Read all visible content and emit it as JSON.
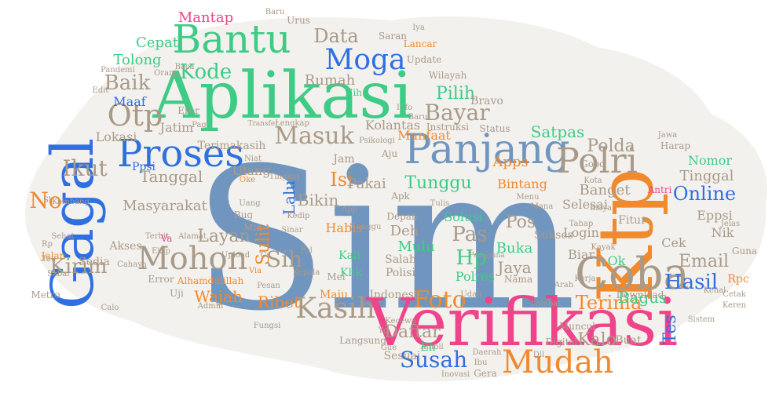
{
  "colors": {
    "steel": "#7096bf",
    "green": "#3ecb86",
    "blue": "#2f6fe0",
    "pink": "#f0448a",
    "orange": "#f08a2e",
    "taupe": "#a99a88",
    "filler": "#c9c3ba"
  },
  "words": [
    {
      "text": "Sim",
      "color": "steel"
    },
    {
      "text": "Aplikasi",
      "color": "green"
    },
    {
      "text": "Verifikasi",
      "color": "pink"
    },
    {
      "text": "Ktp",
      "color": "orange"
    },
    {
      "text": "Panjang",
      "color": "steel"
    },
    {
      "text": "Gagal",
      "color": "blue"
    },
    {
      "text": "Coba",
      "color": "taupe"
    },
    {
      "text": "Proses",
      "color": "blue"
    },
    {
      "text": "Bantu",
      "color": "green"
    },
    {
      "text": "Mudah",
      "color": "orange"
    },
    {
      "text": "Polri",
      "color": "taupe"
    },
    {
      "text": "Moga",
      "color": "blue"
    },
    {
      "text": "Otp",
      "color": "taupe"
    },
    {
      "text": "Mohon",
      "color": "taupe"
    },
    {
      "text": "Kasih",
      "color": "taupe"
    },
    {
      "text": "Susah",
      "color": "blue"
    },
    {
      "text": "Masuk",
      "color": "taupe"
    },
    {
      "text": "Baik",
      "color": "taupe"
    },
    {
      "text": "Hasil",
      "color": "blue"
    },
    {
      "text": "Foto",
      "color": "orange"
    },
    {
      "text": "Ikut",
      "color": "taupe"
    },
    {
      "text": "Bayar",
      "color": "taupe"
    },
    {
      "text": "Kirim",
      "color": "taupe"
    },
    {
      "text": "Sih",
      "color": "taupe"
    },
    {
      "text": "Pas",
      "color": "taupe"
    },
    {
      "text": "Online",
      "color": "blue"
    },
    {
      "text": "Email",
      "color": "taupe"
    },
    {
      "text": "Terima",
      "color": "orange"
    },
    {
      "text": "Tes",
      "color": "blue"
    },
    {
      "text": "Hp",
      "color": "green"
    },
    {
      "text": "Data",
      "color": "taupe"
    },
    {
      "text": "Kode",
      "color": "green"
    },
    {
      "text": "Pilih",
      "color": "green"
    },
    {
      "text": "Layan",
      "color": "taupe"
    },
    {
      "text": "Tunggu",
      "color": "green"
    },
    {
      "text": "Daftar",
      "color": "taupe"
    },
    {
      "text": "Isi",
      "color": "orange"
    },
    {
      "text": "Lalu",
      "color": "blue"
    },
    {
      "text": "Bagus",
      "color": "green"
    },
    {
      "text": "Kalo",
      "color": "taupe"
    },
    {
      "text": "No",
      "color": "orange"
    },
    {
      "text": "Polda",
      "color": "taupe"
    },
    {
      "text": "Tanggal",
      "color": "taupe"
    },
    {
      "text": "Jaya",
      "color": "taupe"
    },
    {
      "text": "Sulit",
      "color": "orange"
    },
    {
      "text": "Ribet",
      "color": "orange"
    },
    {
      "text": "Rumah",
      "color": "taupe"
    },
    {
      "text": "Tolong",
      "color": "green"
    },
    {
      "text": "Cepat",
      "color": "green"
    },
    {
      "text": "Mantap",
      "color": "pink"
    },
    {
      "text": "Wajah",
      "color": "orange"
    },
    {
      "text": "Masyarakat",
      "color": "taupe"
    },
    {
      "text": "Satpas",
      "color": "green"
    },
    {
      "text": "Bikin",
      "color": "taupe"
    },
    {
      "text": "Pakai",
      "color": "taupe"
    },
    {
      "text": "Buka",
      "color": "green"
    },
    {
      "text": "Pos",
      "color": "taupe"
    },
    {
      "text": "Banget",
      "color": "taupe"
    },
    {
      "text": "Tinggal",
      "color": "taupe"
    },
    {
      "text": "Nomor",
      "color": "green"
    },
    {
      "text": "Selesai",
      "color": "taupe"
    },
    {
      "text": "Eppsi",
      "color": "taupe"
    },
    {
      "text": "Nik",
      "color": "taupe"
    },
    {
      "text": "Mulu",
      "color": "green"
    },
    {
      "text": "Deh",
      "color": "taupe"
    },
    {
      "text": "Polres",
      "color": "green"
    },
    {
      "text": "Bintang",
      "color": "orange"
    },
    {
      "text": "Manfaat",
      "color": "orange"
    },
    {
      "text": "Kolantas",
      "color": "taupe"
    },
    {
      "text": "Apps",
      "color": "orange"
    },
    {
      "text": "Maaf",
      "color": "blue"
    },
    {
      "text": "Jatim",
      "color": "taupe"
    },
    {
      "text": "Lokasi",
      "color": "taupe"
    },
    {
      "text": "Terimakasih",
      "color": "taupe"
    },
    {
      "text": "Ppsi",
      "color": "blue"
    },
    {
      "text": "Habis",
      "color": "orange"
    },
    {
      "text": "Kali",
      "color": "green"
    },
    {
      "text": "Klik",
      "color": "green"
    },
    {
      "text": "Solusi",
      "color": "green"
    },
    {
      "text": "Sukses",
      "color": "taupe"
    },
    {
      "text": "Login",
      "color": "taupe"
    },
    {
      "text": "Biar",
      "color": "taupe"
    },
    {
      "text": "Ok",
      "color": "green"
    },
    {
      "text": "Cek",
      "color": "taupe"
    },
    {
      "text": "Fitur",
      "color": "taupe"
    },
    {
      "text": "Salah",
      "color": "taupe"
    },
    {
      "text": "Polisi",
      "color": "taupe"
    },
    {
      "text": "Indonesia",
      "color": "taupe"
    },
    {
      "text": "Maju",
      "color": "orange"
    },
    {
      "text": "Sesuai",
      "color": "taupe"
    },
    {
      "text": "Langsung",
      "color": "taupe"
    },
    {
      "text": "Sedia",
      "color": "taupe"
    },
    {
      "text": "Akses",
      "color": "taupe"
    },
    {
      "text": "Metro",
      "color": "taupe"
    },
    {
      "text": "Ulang",
      "color": "taupe"
    },
    {
      "text": "Jam",
      "color": "taupe"
    },
    {
      "text": "Lancar",
      "color": "orange"
    },
    {
      "text": "Saran",
      "color": "taupe"
    },
    {
      "text": "Update",
      "color": "taupe"
    },
    {
      "text": "Wilayah",
      "color": "taupe"
    },
    {
      "text": "Bravo",
      "color": "taupe"
    },
    {
      "text": "Instruksi",
      "color": "taupe"
    },
    {
      "text": "Status",
      "color": "taupe"
    },
    {
      "text": "Harap",
      "color": "taupe"
    },
    {
      "text": "Good",
      "color": "taupe"
    },
    {
      "text": "Antri",
      "color": "pink"
    },
    {
      "text": "Guna",
      "color": "taupe"
    },
    {
      "text": "Rpc",
      "color": "orange"
    },
    {
      "text": "Download",
      "color": "taupe"
    },
    {
      "text": "Muncul",
      "color": "taupe"
    },
    {
      "text": "Digital",
      "color": "taupe"
    },
    {
      "text": "Buat",
      "color": "taupe"
    },
    {
      "text": "Alhamdulillah",
      "color": "orange"
    },
    {
      "text": "Error",
      "color": "taupe"
    },
    {
      "text": "Eror",
      "color": "taupe"
    },
    {
      "text": "Uji",
      "color": "taupe"
    },
    {
      "text": "Admin",
      "color": "taupe"
    },
    {
      "text": "Upload",
      "color": "taupe"
    },
    {
      "text": "Cahaya",
      "color": "taupe"
    },
    {
      "text": "Ektp",
      "color": "taupe"
    },
    {
      "text": "Terbit",
      "color": "taupe"
    },
    {
      "text": "Alamat",
      "color": "taupe"
    },
    {
      "text": "Kembang",
      "color": "taupe"
    },
    {
      "text": "Kota",
      "color": "taupe"
    },
    {
      "text": "Menu",
      "color": "taupe"
    },
    {
      "text": "Apk",
      "color": "taupe"
    },
    {
      "text": "Depan",
      "color": "taupe"
    },
    {
      "text": "Biaya",
      "color": "taupe"
    },
    {
      "text": "Mana",
      "color": "taupe"
    },
    {
      "text": "Nama",
      "color": "taupe"
    },
    {
      "text": "Arah",
      "color": "taupe"
    },
    {
      "text": "Ambil",
      "color": "taupe"
    },
    {
      "text": "Daerah",
      "color": "taupe"
    },
    {
      "text": "Gera",
      "color": "taupe"
    },
    {
      "text": "Inovasi",
      "color": "taupe"
    },
    {
      "text": "Pagi",
      "color": "taupe"
    },
    {
      "text": "Baca",
      "color": "taupe"
    },
    {
      "text": "Urus",
      "color": "taupe"
    },
    {
      "text": "Baru",
      "color": "taupe"
    },
    {
      "text": "Sehat",
      "color": "taupe"
    },
    {
      "text": "Calo",
      "color": "taupe"
    },
    {
      "text": "Jalan",
      "color": "orange"
    },
    {
      "text": "Sabar",
      "color": "taupe"
    },
    {
      "text": "Psikologi",
      "color": "taupe"
    },
    {
      "text": "Niat",
      "color": "taupe"
    },
    {
      "text": "Oke",
      "color": "orange"
    },
    {
      "text": "Uang",
      "color": "taupe"
    },
    {
      "text": "Bug",
      "color": "taupe"
    },
    {
      "text": "Min",
      "color": "taupe"
    },
    {
      "text": "Va",
      "color": "pink"
    },
    {
      "text": "Via",
      "color": "orange"
    },
    {
      "text": "Cs",
      "color": "taupe"
    },
    {
      "text": "Mei",
      "color": "taupe"
    },
    {
      "text": "Pol",
      "color": "taupe"
    },
    {
      "text": "Nih",
      "color": "green"
    },
    {
      "text": "App",
      "color": "taupe"
    },
    {
      "text": "Tulis",
      "color": "taupe"
    },
    {
      "text": "Aju",
      "color": "taupe"
    },
    {
      "text": "Info",
      "color": "taupe"
    },
    {
      "text": "Baru",
      "color": "taupe"
    },
    {
      "text": "Iya",
      "color": "taupe"
    },
    {
      "text": "Kenal",
      "color": "taupe"
    },
    {
      "text": "Fungsi",
      "color": "taupe"
    },
    {
      "text": "Lambat",
      "color": "taupe"
    },
    {
      "text": "Sistem",
      "color": "taupe"
    },
    {
      "text": "Keren",
      "color": "taupe"
    },
    {
      "text": "Jawa",
      "color": "taupe"
    },
    {
      "text": "Kerja",
      "color": "taupe"
    },
    {
      "text": "Cetak",
      "color": "taupe"
    },
    {
      "text": "Jelas",
      "color": "taupe"
    },
    {
      "text": "Kayak",
      "color": "taupe"
    },
    {
      "text": "Pandemi",
      "color": "taupe"
    },
    {
      "text": "Orang",
      "color": "taupe"
    },
    {
      "text": "Kepala",
      "color": "taupe"
    },
    {
      "text": "Tahap",
      "color": "taupe"
    },
    {
      "text": "Dll",
      "color": "taupe"
    },
    {
      "text": "Edit",
      "color": "taupe"
    },
    {
      "text": "Tau",
      "color": "taupe"
    },
    {
      "text": "Rp",
      "color": "taupe"
    },
    {
      "text": "Sl",
      "color": "taupe"
    },
    {
      "text": "Yg",
      "color": "taupe"
    },
    {
      "text": "Gue",
      "color": "taupe"
    },
    {
      "text": "Ibu",
      "color": "taupe"
    },
    {
      "text": "Eh",
      "color": "green"
    },
    {
      "text": "Udah",
      "color": "taupe"
    },
    {
      "text": "Nunggu",
      "color": "taupe"
    },
    {
      "text": "Kedip",
      "color": "taupe"
    },
    {
      "text": "Tingkat",
      "color": "taupe"
    },
    {
      "text": "Sinar",
      "color": "taupe"
    },
    {
      "text": "Pesan",
      "color": "taupe"
    },
    {
      "text": "Lengkap",
      "color": "taupe"
    },
    {
      "text": "Transfer",
      "color": "taupe"
    },
    {
      "text": "Pengguna",
      "color": "taupe"
    },
    {
      "text": "Kecewa",
      "color": "taupe"
    }
  ]
}
